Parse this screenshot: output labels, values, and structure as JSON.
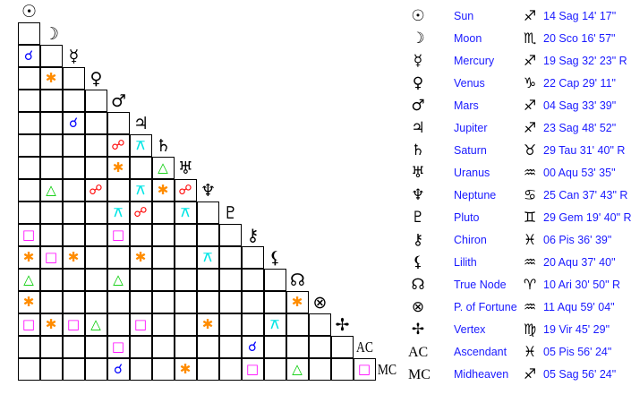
{
  "planets": [
    {
      "name": "Sun",
      "glyph": "☉",
      "icon": "sun-icon",
      "sign_glyph": "♐",
      "sign_icon": "sagittarius-icon",
      "position": "14 Sag 14' 17\""
    },
    {
      "name": "Moon",
      "glyph": "☽",
      "icon": "moon-icon",
      "sign_glyph": "♏",
      "sign_icon": "scorpio-icon",
      "position": "20 Sco 16' 57\""
    },
    {
      "name": "Mercury",
      "glyph": "☿",
      "icon": "mercury-icon",
      "sign_glyph": "♐",
      "sign_icon": "sagittarius-icon",
      "position": "19 Sag 32' 23\" R"
    },
    {
      "name": "Venus",
      "glyph": "♀",
      "icon": "venus-icon",
      "sign_glyph": "♑",
      "sign_icon": "capricorn-icon",
      "position": "22 Cap 29' 11\""
    },
    {
      "name": "Mars",
      "glyph": "♂",
      "icon": "mars-icon",
      "sign_glyph": "♐",
      "sign_icon": "sagittarius-icon",
      "position": "04 Sag 33' 39\""
    },
    {
      "name": "Jupiter",
      "glyph": "♃",
      "icon": "jupiter-icon",
      "sign_glyph": "♐",
      "sign_icon": "sagittarius-icon",
      "position": "23 Sag 48' 52\""
    },
    {
      "name": "Saturn",
      "glyph": "♄",
      "icon": "saturn-icon",
      "sign_glyph": "♉",
      "sign_icon": "taurus-icon",
      "position": "29 Tau 31' 40\" R"
    },
    {
      "name": "Uranus",
      "glyph": "♅",
      "icon": "uranus-icon",
      "sign_glyph": "♒",
      "sign_icon": "aquarius-icon",
      "position": "00 Aqu 53' 35\""
    },
    {
      "name": "Neptune",
      "glyph": "♆",
      "icon": "neptune-icon",
      "sign_glyph": "♋",
      "sign_icon": "cancer-icon",
      "position": "25 Can 37' 43\" R"
    },
    {
      "name": "Pluto",
      "glyph": "♇",
      "icon": "pluto-icon",
      "sign_glyph": "♊",
      "sign_icon": "gemini-icon",
      "position": "29 Gem 19' 40\" R"
    },
    {
      "name": "Chiron",
      "glyph": "⚷",
      "icon": "chiron-icon",
      "sign_glyph": "♓",
      "sign_icon": "pisces-icon",
      "position": "06 Pis 36' 39\""
    },
    {
      "name": "Lilith",
      "glyph": "⚸",
      "icon": "lilith-icon",
      "sign_glyph": "♒",
      "sign_icon": "aquarius-icon",
      "position": "20 Aqu 37' 40\""
    },
    {
      "name": "True Node",
      "glyph": "☊",
      "icon": "true-node-icon",
      "sign_glyph": "♈",
      "sign_icon": "aries-icon",
      "position": "10 Ari 30' 50\" R"
    },
    {
      "name": "P. of Fortune",
      "glyph": "⊗",
      "icon": "part-of-fortune-icon",
      "sign_glyph": "♒",
      "sign_icon": "aquarius-icon",
      "position": "11 Aqu 59' 04\""
    },
    {
      "name": "Vertex",
      "glyph": "✢",
      "icon": "vertex-icon",
      "sign_glyph": "♍",
      "sign_icon": "virgo-icon",
      "position": "19 Vir 45' 29\""
    },
    {
      "name": "Ascendant",
      "glyph": "AC",
      "icon": "ascendant-icon",
      "sign_glyph": "♓",
      "sign_icon": "pisces-icon",
      "position": "05 Pis 56' 24\""
    },
    {
      "name": "Midheaven",
      "glyph": "MC",
      "icon": "midheaven-icon",
      "sign_glyph": "♐",
      "sign_icon": "sagittarius-icon",
      "position": "05 Sag 56' 24\""
    }
  ],
  "aspect_types": {
    "conjunction": {
      "glyph": "☌",
      "color": "#0000ff"
    },
    "sextile": {
      "glyph": "✱",
      "color": "#ff8c00"
    },
    "square": {
      "glyph": "□",
      "color": "#ff00ff"
    },
    "trine": {
      "glyph": "△",
      "color": "#00cc00"
    },
    "opposition": {
      "glyph": "☍",
      "color": "#ff0000"
    },
    "quincunx": {
      "glyph": "⚻",
      "color": "#00e5e5"
    }
  },
  "aspects": [
    [
      "Mercury",
      "Sun",
      "conjunction"
    ],
    [
      "Venus",
      "Moon",
      "sextile"
    ],
    [
      "Jupiter",
      "Mercury",
      "conjunction"
    ],
    [
      "Saturn",
      "Mars",
      "opposition"
    ],
    [
      "Saturn",
      "Jupiter",
      "quincunx"
    ],
    [
      "Uranus",
      "Mars",
      "sextile"
    ],
    [
      "Uranus",
      "Saturn",
      "trine"
    ],
    [
      "Neptune",
      "Moon",
      "trine"
    ],
    [
      "Neptune",
      "Venus",
      "opposition"
    ],
    [
      "Neptune",
      "Jupiter",
      "quincunx"
    ],
    [
      "Neptune",
      "Saturn",
      "sextile"
    ],
    [
      "Neptune",
      "Uranus",
      "opposition"
    ],
    [
      "Pluto",
      "Mars",
      "quincunx"
    ],
    [
      "Pluto",
      "Jupiter",
      "opposition"
    ],
    [
      "Pluto",
      "Uranus",
      "quincunx"
    ],
    [
      "Chiron",
      "Sun",
      "square"
    ],
    [
      "Chiron",
      "Mars",
      "square"
    ],
    [
      "Lilith",
      "Sun",
      "sextile"
    ],
    [
      "Lilith",
      "Moon",
      "square"
    ],
    [
      "Lilith",
      "Mercury",
      "sextile"
    ],
    [
      "Lilith",
      "Jupiter",
      "sextile"
    ],
    [
      "Lilith",
      "Neptune",
      "quincunx"
    ],
    [
      "True Node",
      "Sun",
      "trine"
    ],
    [
      "True Node",
      "Mars",
      "trine"
    ],
    [
      "P. of Fortune",
      "Sun",
      "sextile"
    ],
    [
      "P. of Fortune",
      "True Node",
      "sextile"
    ],
    [
      "Vertex",
      "Sun",
      "square"
    ],
    [
      "Vertex",
      "Moon",
      "sextile"
    ],
    [
      "Vertex",
      "Mercury",
      "square"
    ],
    [
      "Vertex",
      "Venus",
      "trine"
    ],
    [
      "Vertex",
      "Jupiter",
      "square"
    ],
    [
      "Vertex",
      "Neptune",
      "sextile"
    ],
    [
      "Vertex",
      "Lilith",
      "quincunx"
    ],
    [
      "Ascendant",
      "Mars",
      "square"
    ],
    [
      "Ascendant",
      "Chiron",
      "conjunction"
    ],
    [
      "Midheaven",
      "Mars",
      "conjunction"
    ],
    [
      "Midheaven",
      "Uranus",
      "sextile"
    ],
    [
      "Midheaven",
      "Chiron",
      "square"
    ],
    [
      "Midheaven",
      "True Node",
      "trine"
    ],
    [
      "Midheaven",
      "Ascendant",
      "square"
    ]
  ]
}
